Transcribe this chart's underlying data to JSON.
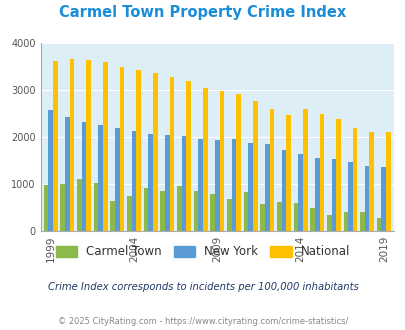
{
  "title": "Carmel Town Property Crime Index",
  "subtitle": "Crime Index corresponds to incidents per 100,000 inhabitants",
  "footer": "© 2025 CityRating.com - https://www.cityrating.com/crime-statistics/",
  "years": [
    1999,
    2000,
    2001,
    2002,
    2003,
    2004,
    2005,
    2006,
    2007,
    2008,
    2009,
    2010,
    2011,
    2012,
    2013,
    2014,
    2015,
    2016,
    2017,
    2018,
    2019
  ],
  "carmel_town": [
    980,
    1000,
    1100,
    1020,
    630,
    750,
    920,
    840,
    960,
    840,
    790,
    670,
    820,
    570,
    610,
    590,
    490,
    340,
    400,
    400,
    270
  ],
  "new_york": [
    2580,
    2430,
    2310,
    2250,
    2190,
    2130,
    2070,
    2040,
    2010,
    1960,
    1940,
    1950,
    1870,
    1840,
    1730,
    1630,
    1560,
    1530,
    1470,
    1380,
    1370
  ],
  "national": [
    3620,
    3660,
    3640,
    3590,
    3480,
    3430,
    3370,
    3280,
    3200,
    3050,
    2970,
    2920,
    2770,
    2590,
    2470,
    2590,
    2490,
    2380,
    2200,
    2100,
    2100
  ],
  "bar_colors": {
    "carmel_town": "#8db84a",
    "new_york": "#5b9bd5",
    "national": "#ffc000"
  },
  "bg_color": "#deeef6",
  "ylim": [
    0,
    4000
  ],
  "yticks": [
    0,
    1000,
    2000,
    3000,
    4000
  ],
  "xtick_years": [
    1999,
    2004,
    2009,
    2014,
    2019
  ],
  "title_color": "#1a8dd9",
  "subtitle_color": "#1f3864",
  "footer_color": "#888888",
  "legend_labels": [
    "Carmel Town",
    "New York",
    "National"
  ],
  "grid_color": "#ffffff"
}
